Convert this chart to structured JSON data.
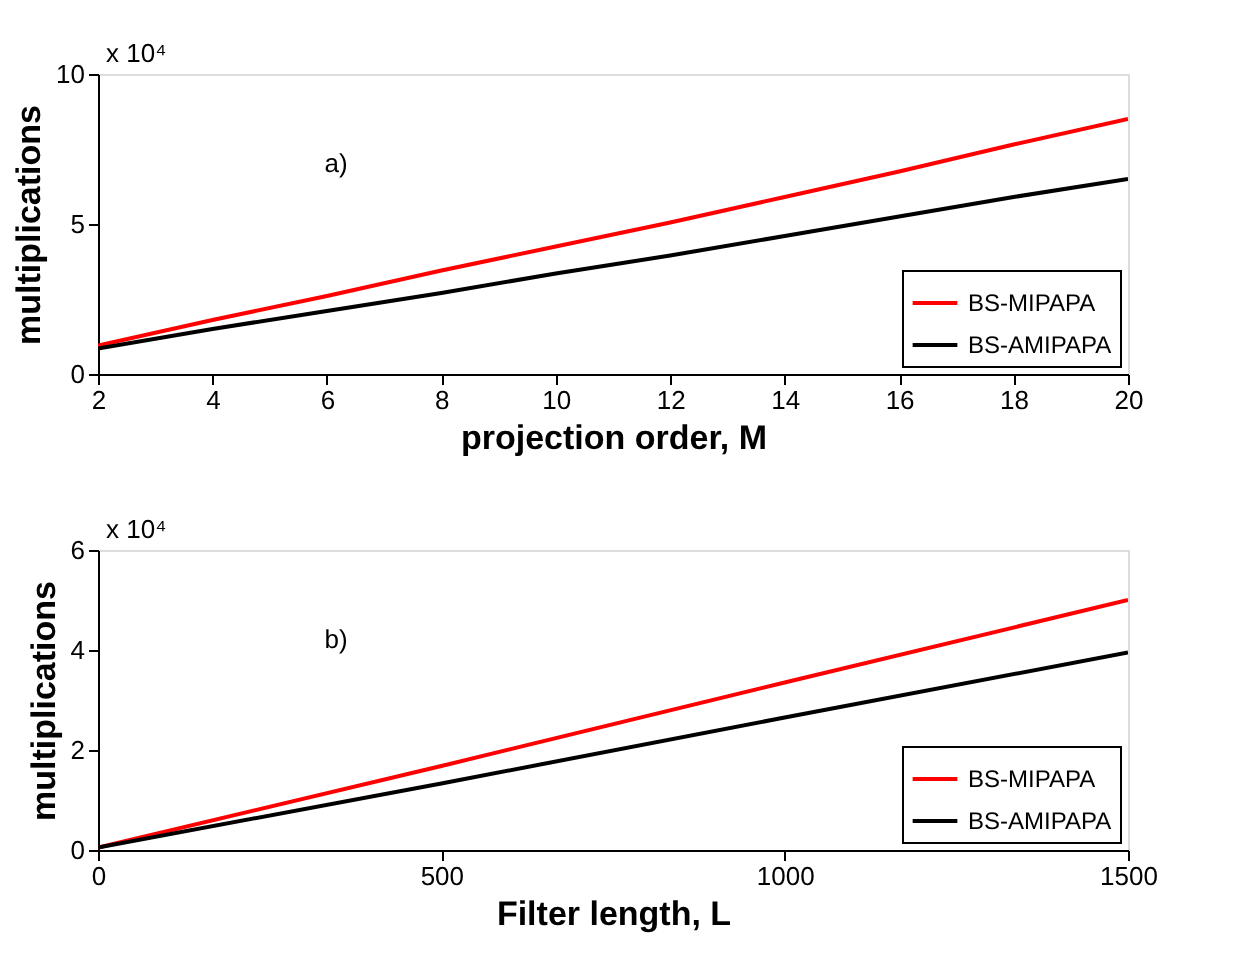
{
  "chart_data": [
    {
      "type": "line",
      "xlabel": "projection order, M",
      "ylabel": "multiplications",
      "x": [
        2,
        4,
        6,
        8,
        10,
        12,
        14,
        16,
        18,
        20
      ],
      "series": [
        {
          "name": "BS-MIPAPA",
          "color": "#ff0000",
          "values": [
            0.95,
            1.8,
            2.6,
            3.45,
            4.25,
            5.05,
            5.9,
            6.75,
            7.65,
            8.5
          ]
        },
        {
          "name": "BS-AMIPAPA",
          "color": "#000000",
          "values": [
            0.85,
            1.5,
            2.1,
            2.7,
            3.35,
            3.95,
            4.6,
            5.25,
            5.9,
            6.5
          ]
        }
      ],
      "xlim": [
        2,
        20
      ],
      "xticks": [
        2,
        4,
        6,
        8,
        10,
        12,
        14,
        16,
        18,
        20
      ],
      "ylim": [
        0,
        10
      ],
      "yticks": [
        0,
        5,
        10
      ],
      "annotations": [
        "a)",
        "x 10⁴"
      ],
      "legend": "bottom right",
      "grid": false
    },
    {
      "type": "line",
      "xlabel": "Filter length, L",
      "ylabel": "multiplications",
      "x": [
        0,
        500,
        1000,
        1500
      ],
      "series": [
        {
          "name": "BS-MIPAPA",
          "color": "#ff0000",
          "values": [
            0.05,
            1.68,
            3.35,
            5.0
          ]
        },
        {
          "name": "BS-AMIPAPA",
          "color": "#000000",
          "values": [
            0.05,
            1.33,
            2.65,
            3.95
          ]
        }
      ],
      "xlim": [
        0,
        1500
      ],
      "xticks": [
        0,
        500,
        1000,
        1500
      ],
      "ylim": [
        0,
        6
      ],
      "yticks": [
        0,
        2,
        4,
        6
      ],
      "annotations": [
        "b)",
        "x 10⁴"
      ],
      "legend": "bottom right",
      "grid": false
    }
  ]
}
